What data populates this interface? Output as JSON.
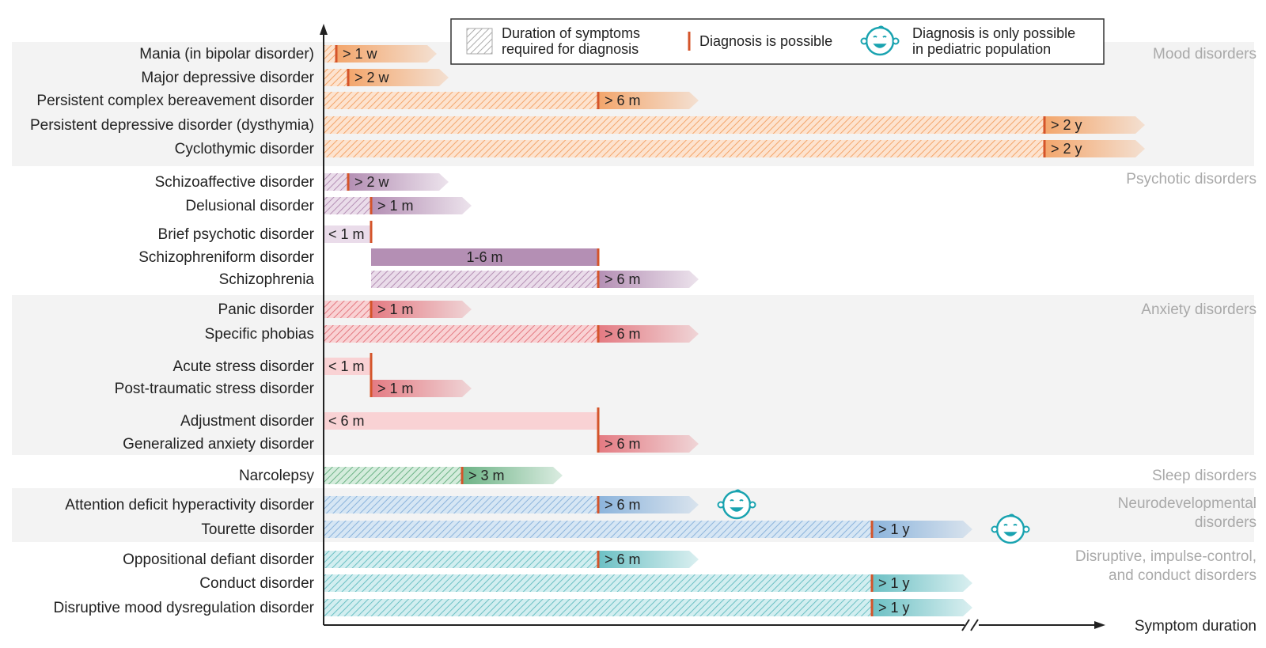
{
  "chart_data": {
    "type": "bar",
    "xlabel": "Symptom duration",
    "legend": {
      "placement": "top",
      "hatched": "Duration of symptoms required for diagnosis",
      "hatched_lines": [
        "Duration of symptoms",
        "required for diagnosis"
      ],
      "marker": "Diagnosis is possible",
      "pediatric": "Diagnosis is only possible in pediatric population",
      "pediatric_lines": [
        "Diagnosis is only possible",
        "in pediatric population"
      ]
    },
    "groups": [
      {
        "name": "Mood disorders",
        "name_lines": [
          "Mood disorders"
        ],
        "color": "#f3a66c",
        "light": "#fde3cf",
        "shaded": true
      },
      {
        "name": "Psychotic disorders",
        "name_lines": [
          "Psychotic disorders"
        ],
        "color": "#b48fb4",
        "light": "#eadcea",
        "shaded": false
      },
      {
        "name": "Anxiety disorders",
        "name_lines": [
          "Anxiety disorders"
        ],
        "color": "#e47a82",
        "light": "#f9d2d4",
        "shaded": true
      },
      {
        "name": "Sleep disorders",
        "name_lines": [
          "Sleep disorders"
        ],
        "color": "#6db386",
        "light": "#d4ecdc",
        "shaded": false
      },
      {
        "name": "Neurodevelopmental disorders",
        "name_lines": [
          "Neurodevelopmental",
          "disorders"
        ],
        "color": "#8cb4dc",
        "light": "#d6e6f4",
        "shaded": true
      },
      {
        "name": "Disruptive, impulse-control, and conduct disorders",
        "name_lines": [
          "Disruptive, impulse-control,",
          "and conduct disorders"
        ],
        "color": "#6cc0c4",
        "light": "#d2eef0",
        "shaded": false
      }
    ],
    "disorders": [
      {
        "name": "Mania (in bipolar disorder)",
        "group": 0,
        "label": "> 1 w",
        "kind": "arrow",
        "hatch_start": "0",
        "marker": "1 w",
        "pediatric": false
      },
      {
        "name": "Major depressive disorder",
        "group": 0,
        "label": "> 2 w",
        "kind": "arrow",
        "hatch_start": "0",
        "marker": "2 w",
        "pediatric": false
      },
      {
        "name": "Persistent complex bereavement disorder",
        "group": 0,
        "label": "> 6 m",
        "kind": "arrow",
        "hatch_start": "0",
        "marker": "6 m",
        "pediatric": false
      },
      {
        "name": "Persistent depressive disorder (dysthymia)",
        "group": 0,
        "label": "> 2 y",
        "kind": "arrow",
        "hatch_start": "0",
        "marker": "2 y",
        "pediatric": false
      },
      {
        "name": "Cyclothymic disorder",
        "group": 0,
        "label": "> 2 y",
        "kind": "arrow",
        "hatch_start": "0",
        "marker": "2 y",
        "pediatric": false
      },
      {
        "name": "Schizoaffective disorder",
        "group": 1,
        "label": "> 2 w",
        "kind": "arrow",
        "hatch_start": "0",
        "marker": "2 w",
        "pediatric": false
      },
      {
        "name": "Delusional disorder",
        "group": 1,
        "label": "> 1 m",
        "kind": "arrow",
        "hatch_start": "0",
        "marker": "1 m",
        "pediatric": false
      },
      {
        "name": "Brief psychotic disorder",
        "group": 1,
        "label": "< 1 m",
        "kind": "range",
        "from": "0",
        "to": "1 m",
        "pediatric": false
      },
      {
        "name": "Schizophreniform disorder",
        "group": 1,
        "label": "1-6 m",
        "kind": "range",
        "from": "1 m",
        "to": "6 m",
        "pediatric": false
      },
      {
        "name": "Schizophrenia",
        "group": 1,
        "label": "> 6 m",
        "kind": "arrow",
        "hatch_start": "1 m",
        "marker": "6 m",
        "pediatric": false
      },
      {
        "name": "Panic disorder",
        "group": 2,
        "label": "> 1 m",
        "kind": "arrow",
        "hatch_start": "0",
        "marker": "1 m",
        "pediatric": false
      },
      {
        "name": "Specific phobias",
        "group": 2,
        "label": "> 6 m",
        "kind": "arrow",
        "hatch_start": "0",
        "marker": "6 m",
        "pediatric": false
      },
      {
        "name": "Acute stress disorder",
        "group": 2,
        "label": "< 1 m",
        "kind": "range",
        "from": "0",
        "to": "1 m",
        "pediatric": false
      },
      {
        "name": "Post-traumatic stress disorder",
        "group": 2,
        "label": "> 1 m",
        "kind": "arrow",
        "hatch_start": "1 m",
        "marker": "1 m",
        "pediatric": false
      },
      {
        "name": "Adjustment disorder",
        "group": 2,
        "label": "< 6 m",
        "kind": "range",
        "from": "0",
        "to": "6 m",
        "pediatric": false
      },
      {
        "name": "Generalized anxiety disorder",
        "group": 2,
        "label": "> 6 m",
        "kind": "arrow",
        "hatch_start": "6 m",
        "marker": "6 m",
        "pediatric": false
      },
      {
        "name": "Narcolepsy",
        "group": 3,
        "label": "> 3 m",
        "kind": "arrow",
        "hatch_start": "0",
        "marker": "3 m",
        "pediatric": false
      },
      {
        "name": "Attention deficit hyperactivity disorder",
        "group": 4,
        "label": "> 6 m",
        "kind": "arrow",
        "hatch_start": "0",
        "marker": "6 m",
        "pediatric": true
      },
      {
        "name": "Tourette disorder",
        "group": 4,
        "label": "> 1 y",
        "kind": "arrow",
        "hatch_start": "0",
        "marker": "1 y",
        "pediatric": true
      },
      {
        "name": "Oppositional defiant disorder",
        "group": 5,
        "label": "> 6 m",
        "kind": "arrow",
        "hatch_start": "0",
        "marker": "6 m",
        "pediatric": false
      },
      {
        "name": "Conduct disorder",
        "group": 5,
        "label": "> 1 y",
        "kind": "arrow",
        "hatch_start": "0",
        "marker": "1 y",
        "pediatric": false
      },
      {
        "name": "Disruptive mood dysregulation disorder",
        "group": 5,
        "label": "> 1 y",
        "kind": "arrow",
        "hatch_start": "0",
        "marker": "1 y",
        "pediatric": false
      }
    ]
  }
}
